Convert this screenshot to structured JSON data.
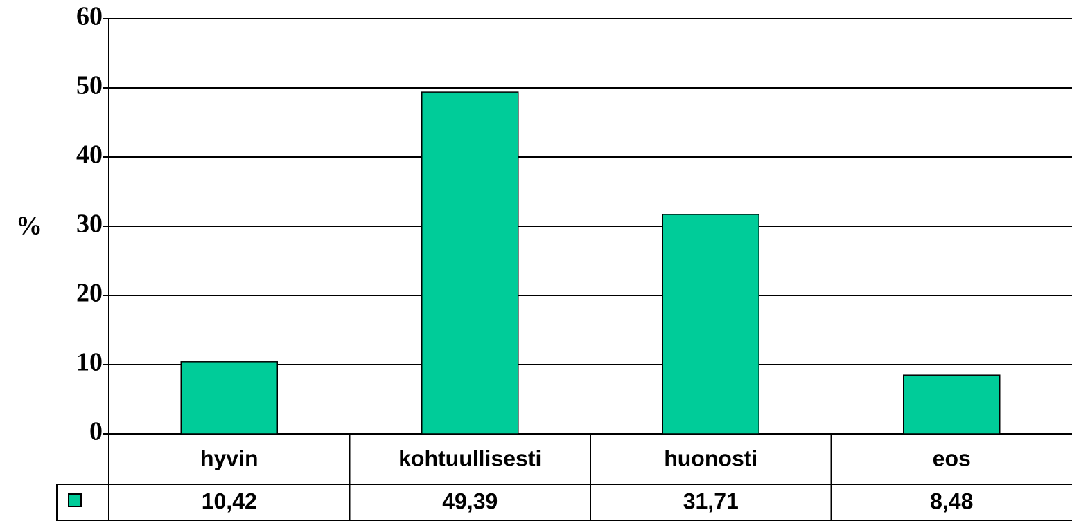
{
  "chart_data": {
    "type": "bar",
    "ylabel": "%",
    "categories": [
      "hyvin",
      "kohtuullisesti",
      "huonosti",
      "eos"
    ],
    "values": [
      10.42,
      49.39,
      31.71,
      8.48
    ],
    "value_labels": [
      "10,42",
      "49,39",
      "31,71",
      "8,48"
    ],
    "color": "#00cc99",
    "ylim": [
      0,
      60
    ],
    "yticks": [
      0,
      10,
      20,
      30,
      40,
      50,
      60
    ],
    "grid": true
  }
}
